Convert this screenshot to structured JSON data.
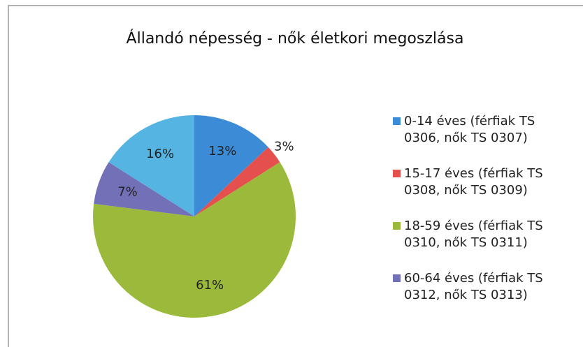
{
  "chart_data": {
    "type": "pie",
    "title": "Állandó népesség - nők életkori megoszlása",
    "categories": [
      "0-14 éves (férfiak TS 0306, nők TS 0307)",
      "15-17 éves (férfiak TS 0308, nők TS 0309)",
      "18-59 éves (férfiak TS 0310, nők TS 0311)",
      "60-64 éves (férfiak TS 0312, nők TS 0313)",
      null
    ],
    "values": [
      13,
      3,
      61,
      7,
      16
    ],
    "value_labels": [
      "13%",
      "3%",
      "61%",
      "7%",
      "16%"
    ],
    "colors": [
      "#3b8bd6",
      "#e5504e",
      "#9bba3b",
      "#7270b6",
      "#55b4e2"
    ],
    "legend": "right"
  }
}
